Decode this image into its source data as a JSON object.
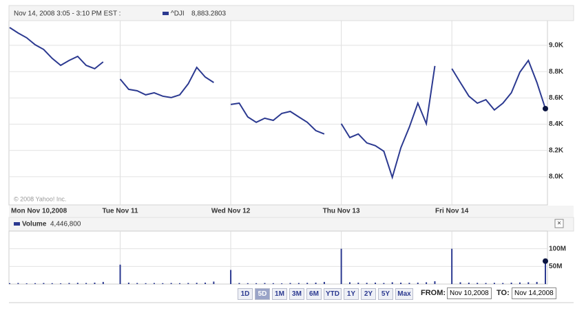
{
  "header": {
    "period": "Nov 14, 2008 3:05 - 3:10 PM EST :",
    "legend_value": "8,883.2803",
    "volume_label": "Volume",
    "volume_value": "4,446,800",
    "copyright": "© 2008 Yahoo! Inc."
  },
  "chart_data": [
    {
      "type": "line",
      "categories": [
        "Mon Nov 10,2008",
        null,
        null,
        null,
        null,
        null,
        null,
        null,
        null,
        null,
        null,
        null,
        null,
        "Tue Nov 11",
        null,
        null,
        null,
        null,
        null,
        null,
        null,
        null,
        null,
        null,
        null,
        null,
        "Wed Nov 12",
        null,
        null,
        null,
        null,
        null,
        null,
        null,
        null,
        null,
        null,
        null,
        null,
        "Thu Nov 13",
        null,
        null,
        null,
        null,
        null,
        null,
        null,
        null,
        null,
        null,
        null,
        null,
        "Fri Nov 14",
        null,
        null,
        null,
        null,
        null,
        null,
        null,
        null,
        null,
        null,
        null
      ],
      "series": [
        {
          "name": "^DJI",
          "color": "#2b3990",
          "values": [
            9136,
            9094,
            9058,
            9005,
            8969,
            8901,
            8848,
            8885,
            8916,
            8848,
            8822,
            8874,
            null,
            8743,
            8665,
            8654,
            8623,
            8639,
            8613,
            8602,
            8623,
            8707,
            8832,
            8759,
            8717,
            null,
            8550,
            8560,
            8455,
            8414,
            8445,
            8429,
            8482,
            8497,
            8455,
            8414,
            8351,
            8325,
            null,
            8403,
            8298,
            8325,
            8257,
            8236,
            8194,
            7995,
            8220,
            8377,
            8560,
            8403,
            8843,
            null,
            8822,
            8717,
            8613,
            8560,
            8586,
            8508,
            8560,
            8639,
            8796,
            8885,
            8717,
            8518
          ]
        }
      ],
      "ylim": [
        7790,
        9162
      ],
      "yticks": [
        {
          "value": 8000,
          "label": "8.0K"
        },
        {
          "value": 8200,
          "label": "8.2K"
        },
        {
          "value": 8400,
          "label": "8.4K"
        },
        {
          "value": 8600,
          "label": "8.6K"
        },
        {
          "value": 8800,
          "label": "8.8K"
        },
        {
          "value": 9000,
          "label": "9.0K"
        }
      ],
      "grid": true
    },
    {
      "type": "bar",
      "series": [
        {
          "name": "Volume",
          "color": "#2b3990",
          "values": [
            2500000,
            3000000,
            2000000,
            2500000,
            3000000,
            2500000,
            2000000,
            3000000,
            3500000,
            3000000,
            4000000,
            6000000,
            null,
            55000000,
            4000000,
            3000000,
            2500000,
            3000000,
            2500000,
            3000000,
            2500000,
            3000000,
            3500000,
            4000000,
            7000000,
            null,
            40000000,
            3000000,
            2500000,
            2500000,
            3000000,
            2500000,
            2000000,
            3000000,
            3000000,
            3500000,
            4000000,
            6000000,
            null,
            100000000,
            5000000,
            4000000,
            3500000,
            4000000,
            3000000,
            5000000,
            4000000,
            3500000,
            4000000,
            5000000,
            8000000,
            null,
            100000000,
            5000000,
            4000000,
            3500000,
            3000000,
            3500000,
            3000000,
            4000000,
            4500000,
            5000000,
            6000000,
            65000000
          ]
        }
      ],
      "ylim": [
        0,
        150000000
      ],
      "yticks": [
        {
          "value": 50000000,
          "label": "50M"
        },
        {
          "value": 100000000,
          "label": "100M"
        }
      ],
      "grid": true
    }
  ],
  "controls": {
    "ranges": [
      "1D",
      "5D",
      "1M",
      "3M",
      "6M",
      "YTD",
      "1Y",
      "2Y",
      "5Y",
      "Max"
    ],
    "active": 1,
    "from_label": "FROM:",
    "from_value": "Nov 10,2008",
    "to_label": "TO:",
    "to_value": "Nov 14,2008"
  }
}
